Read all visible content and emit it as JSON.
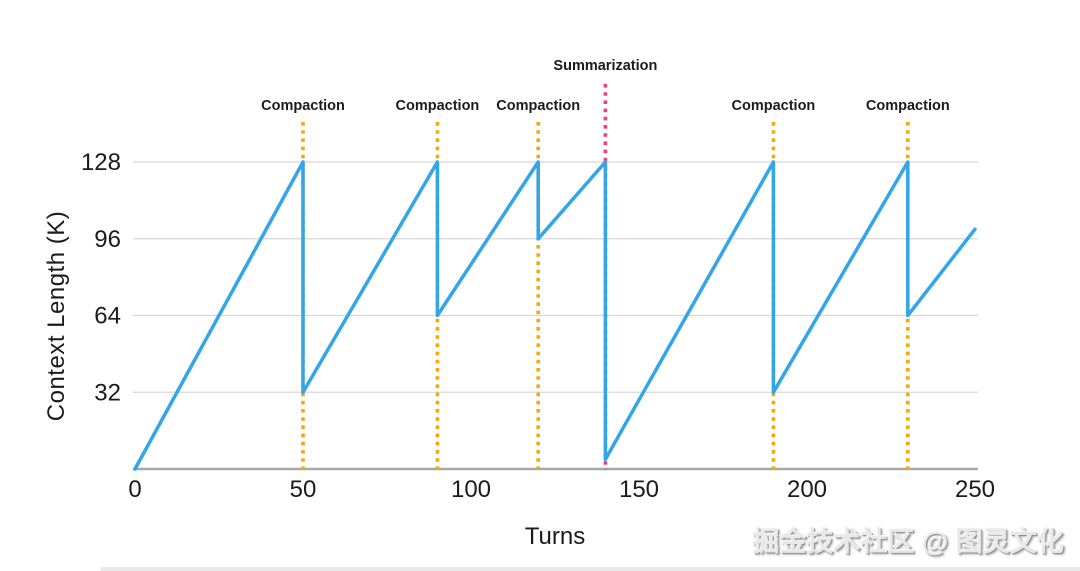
{
  "watermark": {
    "text": "掘金技术社区 @ 图灵文化"
  },
  "chart_data": {
    "type": "line",
    "title": "",
    "xlabel": "Turns",
    "ylabel": "Context Length (K)",
    "xlim": [
      0,
      250
    ],
    "ylim": [
      0,
      128
    ],
    "x_ticks": [
      0,
      50,
      100,
      150,
      200,
      250
    ],
    "y_ticks": [
      32,
      64,
      96,
      128
    ],
    "grid": "horizontal",
    "legend": "none",
    "colors": {
      "series_blue": "#33a5e8",
      "compaction_orange": "#f7a70a",
      "summarization_pink": "#ed3f7f",
      "gridline_gray": "#d8d8d8",
      "axis_baseline_gray": "#a8a8a8",
      "text_black": "#1b1b1b"
    },
    "series": [
      {
        "name": "context-length",
        "color": "#33a5e8",
        "points": [
          [
            0,
            0
          ],
          [
            50,
            128
          ],
          [
            50,
            32
          ],
          [
            90,
            128
          ],
          [
            90,
            64
          ],
          [
            120,
            128
          ],
          [
            120,
            96
          ],
          [
            140,
            128
          ],
          [
            140,
            4
          ],
          [
            190,
            128
          ],
          [
            190,
            32
          ],
          [
            230,
            128
          ],
          [
            230,
            64
          ],
          [
            250,
            100
          ]
        ]
      }
    ],
    "events": [
      {
        "label": "Compaction",
        "turn": 50,
        "color": "#f7a70a",
        "row": "lower"
      },
      {
        "label": "Compaction",
        "turn": 90,
        "color": "#f7a70a",
        "row": "lower"
      },
      {
        "label": "Compaction",
        "turn": 120,
        "color": "#f7a70a",
        "row": "lower"
      },
      {
        "label": "Summarization",
        "turn": 140,
        "color": "#ed3f7f",
        "row": "upper"
      },
      {
        "label": "Compaction",
        "turn": 190,
        "color": "#f7a70a",
        "row": "lower"
      },
      {
        "label": "Compaction",
        "turn": 230,
        "color": "#f7a70a",
        "row": "lower"
      }
    ]
  }
}
